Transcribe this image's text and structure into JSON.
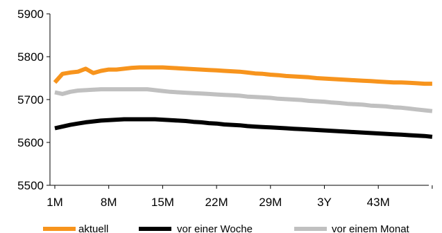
{
  "chart_data": {
    "type": "line",
    "title": "",
    "xlabel": "",
    "ylabel": "",
    "ylim": [
      5500,
      5900
    ],
    "yticks": [
      5500,
      5600,
      5700,
      5800,
      5900
    ],
    "xticks": [
      "1M",
      "8M",
      "15M",
      "22M",
      "29M",
      "3Y",
      "43M"
    ],
    "grid": false,
    "legend_position": "bottom",
    "x": [
      0,
      1,
      2,
      3,
      4,
      5,
      6,
      7,
      8,
      9,
      10,
      11,
      12,
      13,
      14,
      15,
      16,
      17,
      18,
      19,
      20,
      21,
      22,
      23,
      24,
      25,
      26,
      27,
      28,
      29,
      30,
      31,
      32,
      33,
      34,
      35,
      36,
      37,
      38,
      39,
      40,
      41,
      42,
      43,
      44,
      45,
      46,
      47,
      48,
      49
    ],
    "series": [
      {
        "name": "aktuell",
        "color": "#F7941D",
        "values": [
          5740,
          5760,
          5763,
          5765,
          5772,
          5762,
          5767,
          5770,
          5770,
          5772,
          5774,
          5775,
          5775,
          5775,
          5775,
          5774,
          5773,
          5772,
          5771,
          5770,
          5769,
          5768,
          5767,
          5766,
          5765,
          5763,
          5761,
          5760,
          5758,
          5757,
          5755,
          5754,
          5753,
          5752,
          5750,
          5749,
          5748,
          5747,
          5746,
          5745,
          5744,
          5743,
          5742,
          5741,
          5740,
          5740,
          5739,
          5738,
          5737,
          5737
        ]
      },
      {
        "name": "vor einer Woche",
        "color": "#000000",
        "values": [
          5633,
          5637,
          5641,
          5644,
          5647,
          5649,
          5651,
          5652,
          5653,
          5654,
          5654,
          5654,
          5654,
          5654,
          5653,
          5652,
          5651,
          5650,
          5648,
          5647,
          5645,
          5644,
          5642,
          5641,
          5640,
          5638,
          5637,
          5636,
          5635,
          5634,
          5633,
          5632,
          5631,
          5630,
          5629,
          5628,
          5627,
          5626,
          5625,
          5624,
          5623,
          5622,
          5621,
          5620,
          5619,
          5618,
          5617,
          5616,
          5615,
          5613
        ]
      },
      {
        "name": "vor einem Monat",
        "color": "#C0C0C0",
        "values": [
          5717,
          5713,
          5718,
          5721,
          5722,
          5723,
          5724,
          5724,
          5724,
          5724,
          5724,
          5724,
          5724,
          5722,
          5720,
          5718,
          5717,
          5716,
          5715,
          5714,
          5713,
          5712,
          5711,
          5710,
          5709,
          5707,
          5706,
          5705,
          5704,
          5702,
          5701,
          5700,
          5699,
          5697,
          5696,
          5695,
          5693,
          5692,
          5690,
          5689,
          5688,
          5686,
          5685,
          5684,
          5682,
          5681,
          5679,
          5677,
          5675,
          5673
        ]
      }
    ]
  }
}
